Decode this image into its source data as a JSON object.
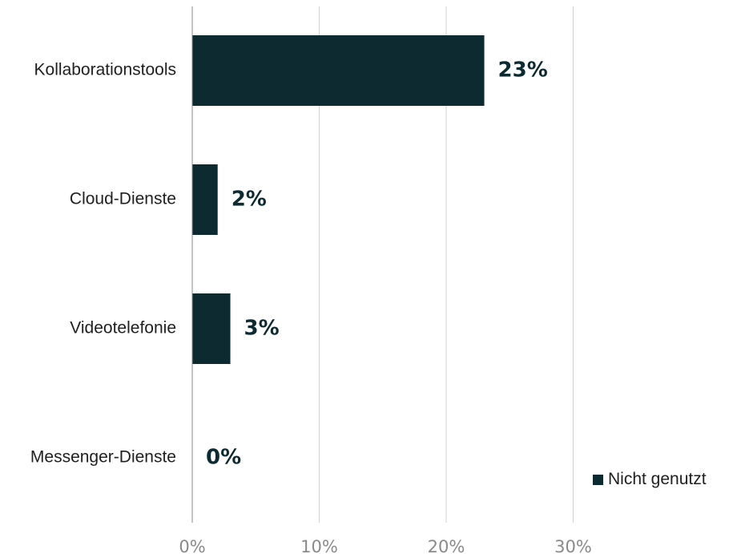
{
  "chart_data": {
    "type": "bar",
    "orientation": "horizontal",
    "categories": [
      "Kollaborationstools",
      "Cloud-Dienste",
      "Videotelefonie",
      "Messenger-Dienste"
    ],
    "series": [
      {
        "name": "Nicht genutzt",
        "values": [
          23,
          2,
          3,
          0
        ],
        "data_labels": [
          "23%",
          "2%",
          "3%",
          "0%"
        ]
      }
    ],
    "title": "",
    "xlabel": "",
    "ylabel": "",
    "xlim": [
      0,
      30
    ],
    "x_ticks": [
      0,
      10,
      20,
      30
    ],
    "x_tick_labels": [
      "0%",
      "10%",
      "20%",
      "30%"
    ],
    "grid": "vertical",
    "legend_position": "bottom-right",
    "colors": {
      "bar": "#0d2a31",
      "grid": "#d0d0d0",
      "axis": "#888888"
    }
  },
  "legend": {
    "label": "Nicht genutzt"
  }
}
